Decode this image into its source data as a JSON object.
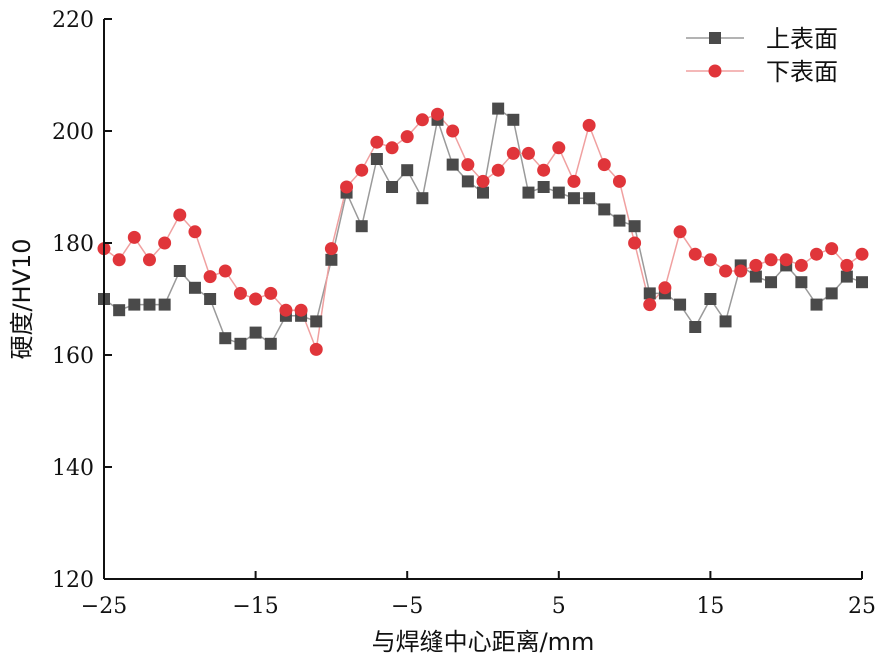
{
  "chart_data": {
    "type": "line",
    "xlabel": "与焊缝中心距离/mm",
    "ylabel": "硬度/HV10",
    "xlim": [
      -25,
      25
    ],
    "ylim": [
      120,
      220
    ],
    "xticks": [
      -25,
      -15,
      -5,
      5,
      15,
      25
    ],
    "yticks": [
      120,
      140,
      160,
      180,
      200,
      220
    ],
    "xtick_labels": [
      "−25",
      "−15",
      "−5",
      "5",
      "15",
      "25"
    ],
    "ytick_labels": [
      "120",
      "140",
      "160",
      "180",
      "200",
      "220"
    ],
    "grid": false,
    "legend_position": "top-right",
    "x": [
      -25,
      -24,
      -23,
      -22,
      -21,
      -20,
      -19,
      -18,
      -17,
      -16,
      -15,
      -14,
      -13,
      -12,
      -11,
      -10,
      -9,
      -8,
      -7,
      -6,
      -5,
      -4,
      -3,
      -2,
      -1,
      0,
      1,
      2,
      3,
      4,
      5,
      6,
      7,
      8,
      9,
      10,
      11,
      12,
      13,
      14,
      15,
      16,
      17,
      18,
      19,
      20,
      21,
      22,
      23,
      24,
      25
    ],
    "series": [
      {
        "name": "上表面",
        "color": "#4a4a4a",
        "line_color": "#9a9a9a",
        "marker": "square",
        "values": [
          170,
          168,
          169,
          169,
          169,
          175,
          172,
          170,
          163,
          162,
          164,
          162,
          167,
          167,
          166,
          177,
          189,
          183,
          195,
          190,
          193,
          188,
          202,
          194,
          191,
          189,
          204,
          202,
          189,
          190,
          189,
          188,
          188,
          186,
          184,
          183,
          171,
          171,
          169,
          165,
          170,
          166,
          176,
          174,
          173,
          176,
          173,
          169,
          171,
          174,
          173
        ]
      },
      {
        "name": "下表面",
        "color": "#e0353a",
        "line_color": "#f0a0a0",
        "marker": "circle",
        "values": [
          179,
          177,
          181,
          177,
          180,
          185,
          182,
          174,
          175,
          171,
          170,
          171,
          168,
          168,
          161,
          179,
          190,
          193,
          198,
          197,
          199,
          202,
          203,
          200,
          194,
          191,
          193,
          196,
          196,
          193,
          197,
          191,
          201,
          194,
          191,
          180,
          169,
          172,
          182,
          178,
          177,
          175,
          175,
          176,
          177,
          177,
          176,
          178,
          179,
          176,
          178
        ]
      }
    ]
  }
}
